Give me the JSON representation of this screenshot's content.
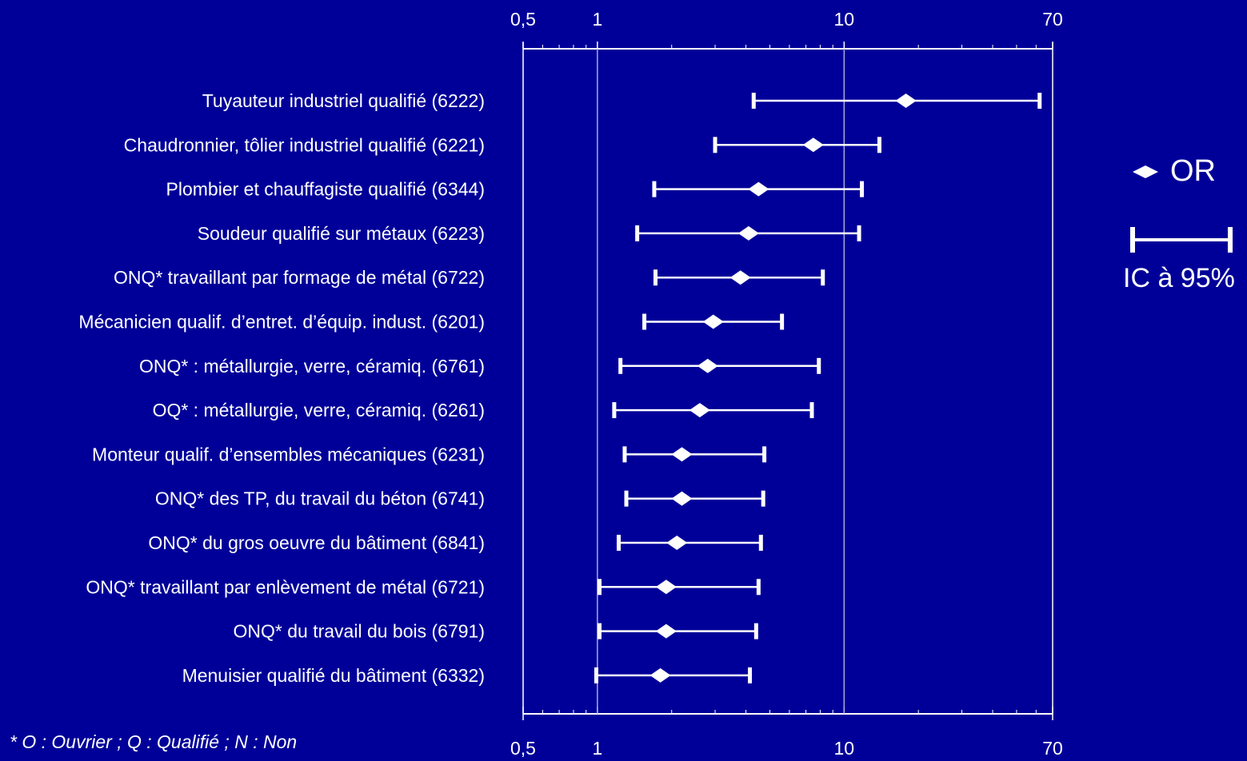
{
  "chart_data": {
    "type": "forest",
    "x_scale": "log",
    "xlim": [
      0.5,
      70
    ],
    "x_ticks": [
      "0,5",
      "1",
      "10",
      "70"
    ],
    "x_tick_values": [
      0.5,
      1,
      10,
      70
    ],
    "reference_lines": [
      1,
      10
    ],
    "rows": [
      {
        "label": "Tuyauteur industriel qualifié (6222)",
        "or": 17.8,
        "ci": [
          4.3,
          62
        ]
      },
      {
        "label": "Chaudronnier, tôlier industriel qualifié (6221)",
        "or": 7.5,
        "ci": [
          3.0,
          13.9
        ]
      },
      {
        "label": "Plombier et chauffagiste qualifié (6344)",
        "or": 4.5,
        "ci": [
          1.7,
          11.8
        ]
      },
      {
        "label": "Soudeur qualifié sur métaux (6223)",
        "or": 4.1,
        "ci": [
          1.45,
          11.5
        ]
      },
      {
        "label": "ONQ* travaillant par formage de métal (6722)",
        "or": 3.8,
        "ci": [
          1.72,
          8.2
        ]
      },
      {
        "label": "Mécanicien qualif. d’entret. d’équip. indust. (6201)",
        "or": 2.95,
        "ci": [
          1.55,
          5.6
        ]
      },
      {
        "label": "ONQ* : métallurgie, verre, céramiq. (6761)",
        "or": 2.8,
        "ci": [
          1.24,
          7.9
        ]
      },
      {
        "label": "OQ* : métallurgie, verre, céramiq. (6261)",
        "or": 2.6,
        "ci": [
          1.17,
          7.4
        ]
      },
      {
        "label": "Monteur qualif. d’ensembles mécaniques (6231)",
        "or": 2.2,
        "ci": [
          1.29,
          4.75
        ]
      },
      {
        "label": "ONQ* des TP, du travail du béton (6741)",
        "or": 2.2,
        "ci": [
          1.31,
          4.7
        ]
      },
      {
        "label": "ONQ* du gros oeuvre du bâtiment (6841)",
        "or": 2.1,
        "ci": [
          1.22,
          4.6
        ]
      },
      {
        "label": "ONQ* travaillant par enlèvement de métal (6721)",
        "or": 1.9,
        "ci": [
          1.02,
          4.5
        ]
      },
      {
        "label": "ONQ* du travail du bois (6791)",
        "or": 1.9,
        "ci": [
          1.02,
          4.4
        ]
      },
      {
        "label": "Menuisier qualifié du bâtiment (6332)",
        "or": 1.8,
        "ci": [
          0.99,
          4.15
        ]
      }
    ],
    "legend": {
      "point_label": "OR",
      "interval_label": "IC à 95%",
      "placement": "right"
    },
    "grid": false
  },
  "footnote": "* O : Ouvrier ; Q : Qualifié ; N : Non",
  "colors": {
    "background": "#000099",
    "foreground": "#ffffff",
    "reference_line": "#a8a8d8"
  }
}
